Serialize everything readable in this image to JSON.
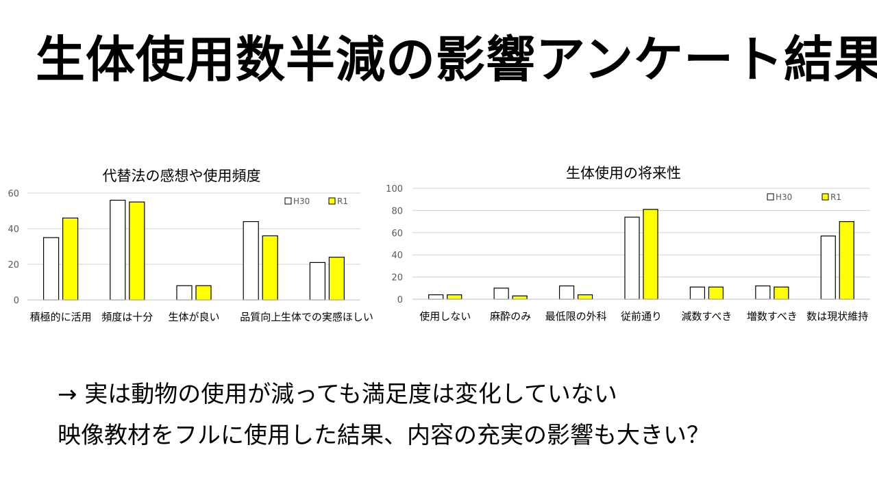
{
  "slide": {
    "title": "生体使用数半減の影響アンケート結果",
    "conclusion_line1": "→ 実は動物の使用が減っても満足度は変化していない",
    "conclusion_line2": "映像教材をフルに使用した結果、内容の充実の影響も大きい？"
  },
  "colors": {
    "h30_fill": "#ffffff",
    "r1_fill": "#ffff00",
    "bar_stroke": "#000000",
    "grid": "#d0d0d0",
    "tick_text": "#595959"
  },
  "chart_data": [
    {
      "type": "bar",
      "title": "代替法の感想や使用頻度",
      "categories": [
        "積極的に活用",
        "頻度は十分",
        "生体が良い",
        "品質向上",
        "生体での実感ほしい"
      ],
      "series": [
        {
          "name": "H30",
          "values": [
            35,
            56,
            8,
            44,
            21
          ]
        },
        {
          "name": "R1",
          "values": [
            46,
            55,
            8,
            36,
            24
          ]
        }
      ],
      "ylim": [
        0,
        60
      ],
      "yticks": [
        0,
        20,
        40,
        60
      ],
      "grid": true,
      "legend": "top-right"
    },
    {
      "type": "bar",
      "title": "生体使用の将来性",
      "categories": [
        "使用しない",
        "麻酔のみ",
        "最低限の外科",
        "従前通り",
        "減数すべき",
        "増数すべき",
        "数は現状維持"
      ],
      "series": [
        {
          "name": "H30",
          "values": [
            4,
            10,
            12,
            74,
            11,
            12,
            57
          ]
        },
        {
          "name": "R1",
          "values": [
            4,
            3,
            4,
            81,
            11,
            11,
            70
          ]
        }
      ],
      "ylim": [
        0,
        100
      ],
      "yticks": [
        0,
        20,
        40,
        60,
        80,
        100
      ],
      "grid": true,
      "legend": "top-right"
    }
  ]
}
